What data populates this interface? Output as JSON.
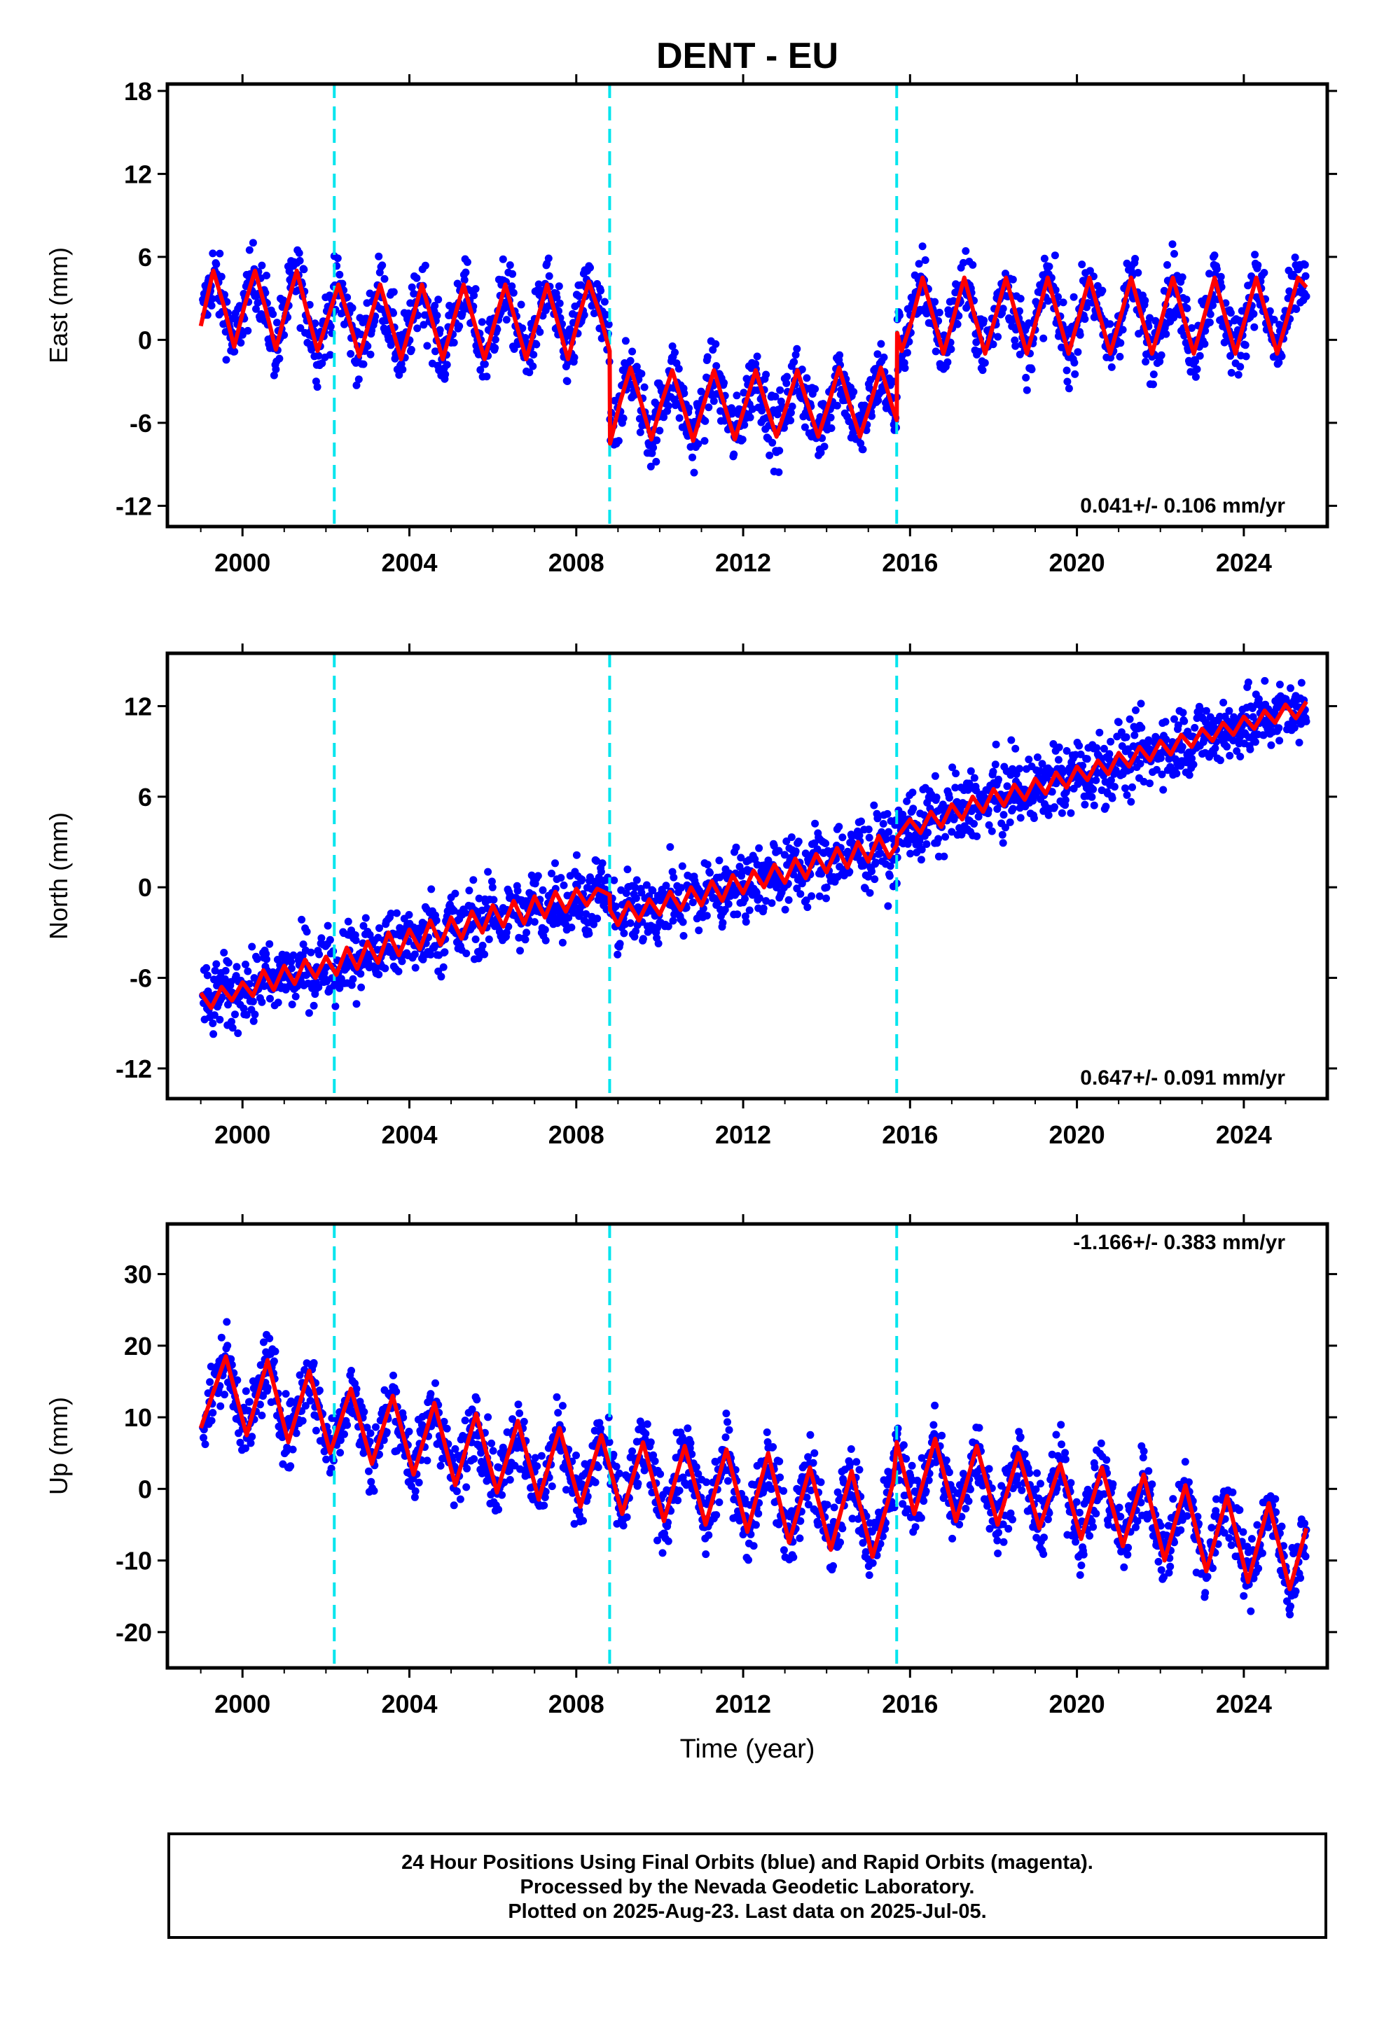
{
  "chart_data": {
    "title": "DENT - EU",
    "xlabel": "Time (year)",
    "xlim": [
      1998.2,
      2026.0
    ],
    "x_ticks": [
      2000,
      2004,
      2008,
      2012,
      2016,
      2020,
      2024
    ],
    "x_tick_labels": [
      "2000",
      "2004",
      "2008",
      "2012",
      "2016",
      "2020",
      "2024"
    ],
    "breaks": [
      2002.2,
      2008.8,
      2015.68
    ],
    "colors": {
      "observed": "#0000ff",
      "model": "#ff0000",
      "breaks": "#00e5ee",
      "frame": "#000000"
    },
    "panels": [
      {
        "id": "east",
        "type": "scatter",
        "ylabel": "East (mm)",
        "ylim": [
          -13.5,
          18.5
        ],
        "y_ticks": [
          18,
          12,
          6,
          0,
          -6,
          -12
        ],
        "y_tick_labels": [
          "18",
          "12",
          "6",
          "0",
          "-6",
          "-12"
        ],
        "velocity": "0.041+/- 0.106 mm/yr",
        "velocity_position": "bottom-right",
        "series": [
          {
            "name": "",
            "type": "line",
            "x": [
              1999.0,
              1999.5,
              2000.0,
              2000.5,
              2001.0,
              2001.5,
              2002.0,
              2002.5,
              2003.0,
              2003.5,
              2004.0,
              2004.5,
              2005.0,
              2005.5,
              2006.0,
              2006.5,
              2007.0,
              2007.5,
              2008.0,
              2008.5,
              2008.8,
              2009.0,
              2009.5,
              2010.0,
              2010.5,
              2011.0,
              2011.5,
              2012.0,
              2012.5,
              2013.0,
              2013.5,
              2014.0,
              2014.5,
              2015.0,
              2015.5,
              2015.68,
              2016.0,
              2016.5,
              2017.0,
              2017.5,
              2018.0,
              2018.5,
              2019.0,
              2019.5,
              2020.0,
              2020.5,
              2021.0,
              2021.5,
              2022.0,
              2022.5,
              2023.0,
              2023.5,
              2024.0,
              2024.5,
              2025.0,
              2025.5
            ],
            "y": [
              2.4,
              4.0,
              2.0,
              3.8,
              2.0,
              3.6,
              1.8,
              3.0,
              1.2,
              3.0,
              1.3,
              3.0,
              1.2,
              3.2,
              1.3,
              3.0,
              1.3,
              3.0,
              1.4,
              3.0,
              1.8,
              -4.5,
              -3.0,
              -5.0,
              -3.0,
              -5.0,
              -3.0,
              -5.0,
              -3.2,
              -5.0,
              -3.3,
              -5.0,
              -3.3,
              -5.0,
              -3.5,
              -4.0,
              2.0,
              3.5,
              1.8,
              3.5,
              1.8,
              3.6,
              1.8,
              3.6,
              1.8,
              3.6,
              1.8,
              3.6,
              1.8,
              3.6,
              1.8,
              3.6,
              1.8,
              3.6,
              1.8,
              3.6
            ]
          },
          {
            "name": "",
            "type": "line",
            "x": [
              1999.0,
              1999.3,
              1999.55,
              1999.8,
              2000.05,
              2000.3,
              2000.55,
              2000.8,
              2001.05,
              2001.3,
              2001.55,
              2001.8,
              2002.05,
              2002.3,
              2002.55,
              2002.8,
              2003.05,
              2003.3,
              2003.55,
              2003.8,
              2004.05,
              2004.3,
              2004.55,
              2004.8,
              2005.05,
              2005.3,
              2005.55,
              2005.8,
              2006.05,
              2006.3,
              2006.55,
              2006.8,
              2007.05,
              2007.3,
              2007.55,
              2007.8,
              2008.05,
              2008.3,
              2008.55,
              2008.8,
              2008.81,
              2009.05,
              2009.3,
              2009.55,
              2009.8,
              2010.05,
              2010.3,
              2010.55,
              2010.8,
              2011.05,
              2011.3,
              2011.55,
              2011.8,
              2012.05,
              2012.3,
              2012.55,
              2012.8,
              2013.05,
              2013.3,
              2013.55,
              2013.8,
              2014.05,
              2014.3,
              2014.55,
              2014.8,
              2015.05,
              2015.3,
              2015.55,
              2015.68,
              2015.69,
              2015.8,
              2016.05,
              2016.3,
              2016.55,
              2016.8,
              2017.05,
              2017.3,
              2017.55,
              2017.8,
              2018.05,
              2018.3,
              2018.55,
              2018.8,
              2019.05,
              2019.3,
              2019.55,
              2019.8,
              2020.05,
              2020.3,
              2020.55,
              2020.8,
              2021.05,
              2021.3,
              2021.55,
              2021.8,
              2022.05,
              2022.3,
              2022.55,
              2022.8,
              2023.05,
              2023.3,
              2023.55,
              2023.8,
              2024.05,
              2024.3,
              2024.55,
              2024.8,
              2025.05,
              2025.3,
              2025.5
            ],
            "y": [
              1.0,
              5.0,
              2.5,
              -0.5,
              2.5,
              5.0,
              2.3,
              -0.7,
              2.3,
              5.0,
              2.0,
              -0.8,
              1.6,
              4.0,
              1.5,
              -1.2,
              1.4,
              4.0,
              1.3,
              -1.4,
              1.3,
              4.0,
              1.3,
              -1.4,
              1.3,
              4.0,
              1.3,
              -1.4,
              1.3,
              4.0,
              1.3,
              -1.4,
              1.3,
              4.0,
              1.3,
              -1.4,
              1.5,
              4.2,
              2.0,
              -0.8,
              -7.5,
              -4.5,
              -2.0,
              -4.5,
              -7.2,
              -4.5,
              -2.2,
              -4.7,
              -7.3,
              -4.7,
              -2.2,
              -4.7,
              -7.2,
              -4.7,
              -2.2,
              -4.7,
              -7.0,
              -4.7,
              -2.2,
              -4.7,
              -7.0,
              -4.6,
              -2.0,
              -4.6,
              -7.0,
              -4.6,
              -2.0,
              -4.6,
              -5.8,
              0.5,
              -0.8,
              1.5,
              4.5,
              1.7,
              -1.0,
              1.7,
              4.5,
              1.7,
              -1.0,
              1.7,
              4.5,
              1.7,
              -1.0,
              1.7,
              4.5,
              1.7,
              -1.0,
              1.7,
              4.5,
              1.7,
              -1.0,
              1.7,
              4.5,
              1.7,
              -1.0,
              1.7,
              4.5,
              1.7,
              -1.0,
              1.7,
              4.5,
              1.7,
              -1.0,
              1.7,
              4.5,
              1.7,
              -1.0,
              1.7,
              4.5,
              3.8
            ]
          }
        ]
      },
      {
        "id": "north",
        "type": "scatter",
        "ylabel": "North (mm)",
        "ylim": [
          -14.0,
          15.5
        ],
        "y_ticks": [
          12,
          6,
          0,
          -6,
          -12
        ],
        "y_tick_labels": [
          "12",
          "6",
          "0",
          "-6",
          "-12"
        ],
        "velocity": "0.647+/- 0.091 mm/yr",
        "velocity_position": "bottom-right",
        "series": [
          {
            "name": "",
            "type": "line",
            "x": [
              1999.0,
              2000.0,
              2001.0,
              2002.0,
              2002.2,
              2003.0,
              2004.0,
              2005.0,
              2006.0,
              2007.0,
              2008.0,
              2008.8,
              2009.0,
              2010.0,
              2011.0,
              2012.0,
              2013.0,
              2014.0,
              2015.0,
              2015.68,
              2016.0,
              2017.0,
              2018.0,
              2019.0,
              2020.0,
              2021.0,
              2022.0,
              2023.0,
              2024.0,
              2025.0,
              2025.5
            ],
            "y": [
              -7.5,
              -6.5,
              -5.8,
              -5.2,
              -5.0,
              -4.4,
              -3.7,
              -3.2,
              -2.6,
              -2.0,
              -1.4,
              -0.9,
              -2.3,
              -1.8,
              -1.2,
              -0.5,
              0.1,
              0.7,
              1.3,
              2.0,
              3.8,
              4.6,
              5.3,
              6.0,
              6.8,
              7.5,
              8.2,
              8.9,
              9.6,
              10.3,
              10.7
            ]
          },
          {
            "name": "",
            "type": "line",
            "x": [
              1999.0,
              1999.25,
              1999.5,
              1999.75,
              2000.0,
              2000.25,
              2000.5,
              2000.75,
              2001.0,
              2001.25,
              2001.5,
              2001.75,
              2002.0,
              2002.25,
              2002.5,
              2002.75,
              2003.0,
              2003.25,
              2003.5,
              2003.75,
              2004.0,
              2004.25,
              2004.5,
              2004.75,
              2005.0,
              2005.25,
              2005.5,
              2005.75,
              2006.0,
              2006.25,
              2006.5,
              2006.75,
              2007.0,
              2007.25,
              2007.5,
              2007.75,
              2008.0,
              2008.25,
              2008.5,
              2008.8,
              2008.81,
              2009.0,
              2009.25,
              2009.5,
              2009.75,
              2010.0,
              2010.25,
              2010.5,
              2010.75,
              2011.0,
              2011.25,
              2011.5,
              2011.75,
              2012.0,
              2012.25,
              2012.5,
              2012.75,
              2013.0,
              2013.25,
              2013.5,
              2013.75,
              2014.0,
              2014.25,
              2014.5,
              2014.75,
              2015.0,
              2015.25,
              2015.5,
              2015.68,
              2015.69,
              2016.0,
              2016.25,
              2016.5,
              2016.75,
              2017.0,
              2017.25,
              2017.5,
              2017.75,
              2018.0,
              2018.25,
              2018.5,
              2018.75,
              2019.0,
              2019.25,
              2019.5,
              2019.75,
              2020.0,
              2020.25,
              2020.5,
              2020.75,
              2021.0,
              2021.25,
              2021.5,
              2021.75,
              2022.0,
              2022.25,
              2022.5,
              2022.75,
              2023.0,
              2023.25,
              2023.5,
              2023.75,
              2024.0,
              2024.25,
              2024.5,
              2024.75,
              2025.0,
              2025.25,
              2025.5
            ],
            "y": [
              -7.0,
              -8.0,
              -6.6,
              -7.5,
              -6.3,
              -7.2,
              -5.5,
              -6.8,
              -5.2,
              -6.4,
              -4.8,
              -6.0,
              -4.6,
              -5.8,
              -4.0,
              -5.4,
              -3.6,
              -5.0,
              -3.0,
              -4.5,
              -2.8,
              -4.1,
              -2.2,
              -3.8,
              -2.0,
              -3.4,
              -1.6,
              -3.0,
              -1.2,
              -2.6,
              -0.9,
              -2.4,
              -0.6,
              -2.0,
              -0.3,
              -1.6,
              -0.1,
              -1.2,
              -0.1,
              -0.5,
              -1.5,
              -2.5,
              -1.0,
              -2.2,
              -0.8,
              -1.8,
              -0.3,
              -1.5,
              0.0,
              -1.2,
              0.4,
              -0.9,
              0.8,
              -0.4,
              1.1,
              0.0,
              1.5,
              0.3,
              1.9,
              0.6,
              2.2,
              1.0,
              2.6,
              1.3,
              3.0,
              1.7,
              3.4,
              2.0,
              2.8,
              3.3,
              4.5,
              3.6,
              5.0,
              4.0,
              5.5,
              4.5,
              6.0,
              5.0,
              6.5,
              5.4,
              6.8,
              5.8,
              7.2,
              6.2,
              7.6,
              6.6,
              8.0,
              7.1,
              8.4,
              7.5,
              8.9,
              8.0,
              9.3,
              8.4,
              9.7,
              8.8,
              10.1,
              9.3,
              10.5,
              9.7,
              10.9,
              10.1,
              11.3,
              10.5,
              11.7,
              10.9,
              12.1,
              11.2,
              12.3
            ]
          }
        ]
      },
      {
        "id": "up",
        "type": "scatter",
        "ylabel": "Up (mm)",
        "ylim": [
          -25.0,
          37.0
        ],
        "y_ticks": [
          30,
          20,
          10,
          0,
          -10,
          -20
        ],
        "y_tick_labels": [
          "30",
          "20",
          "10",
          "0",
          "-10",
          "-20"
        ],
        "velocity": "-1.166+/- 0.383 mm/yr",
        "velocity_position": "top-right",
        "series": [
          {
            "name": "",
            "type": "line",
            "x": [
              1999.0,
              2000.0,
              2001.0,
              2002.0,
              2003.0,
              2004.0,
              2005.0,
              2006.0,
              2007.0,
              2008.0,
              2009.0,
              2010.0,
              2011.0,
              2012.0,
              2013.0,
              2014.0,
              2015.0,
              2016.0,
              2017.0,
              2018.0,
              2019.0,
              2020.0,
              2021.0,
              2022.0,
              2023.0,
              2024.0,
              2025.0,
              2025.5
            ],
            "y": [
              13.0,
              12.0,
              10.5,
              9.0,
              7.5,
              6.5,
              5.0,
              4.0,
              3.0,
              2.0,
              1.0,
              0.5,
              0.0,
              -1.0,
              -1.5,
              -2.0,
              -2.5,
              -1.5,
              -1.0,
              -1.5,
              -2.0,
              -2.5,
              -3.0,
              -4.0,
              -5.0,
              -6.0,
              -7.0,
              -7.5
            ]
          },
          {
            "name": "",
            "type": "line",
            "x": [
              1999.0,
              1999.6,
              2000.1,
              2000.6,
              2001.1,
              2001.6,
              2002.1,
              2002.6,
              2003.1,
              2003.6,
              2004.1,
              2004.6,
              2005.1,
              2005.6,
              2006.1,
              2006.6,
              2007.1,
              2007.6,
              2008.1,
              2008.6,
              2009.1,
              2009.6,
              2010.1,
              2010.6,
              2011.1,
              2011.6,
              2012.1,
              2012.6,
              2013.1,
              2013.6,
              2014.1,
              2014.6,
              2015.1,
              2015.6,
              2015.68,
              2016.1,
              2016.6,
              2017.1,
              2017.6,
              2018.1,
              2018.6,
              2019.1,
              2019.6,
              2020.1,
              2020.6,
              2021.1,
              2021.6,
              2022.1,
              2022.6,
              2023.1,
              2023.6,
              2024.1,
              2024.6,
              2025.1,
              2025.5
            ],
            "y": [
              8.5,
              18.5,
              7.5,
              18.0,
              6.5,
              16.5,
              5.0,
              14.0,
              3.5,
              13.0,
              2.0,
              12.0,
              0.5,
              10.5,
              -0.5,
              9.5,
              -1.5,
              8.5,
              -2.5,
              7.5,
              -3.5,
              6.5,
              -4.5,
              6.0,
              -5.0,
              5.5,
              -6.0,
              5.0,
              -7.5,
              3.0,
              -8.5,
              2.5,
              -9.5,
              1.0,
              6.5,
              -3.5,
              7.0,
              -4.5,
              6.0,
              -5.0,
              5.0,
              -5.5,
              3.5,
              -7.0,
              3.0,
              -8.0,
              2.0,
              -10.0,
              0.5,
              -11.5,
              -1.0,
              -13.0,
              -2.0,
              -14.0,
              -5.5
            ]
          }
        ]
      }
    ]
  },
  "footer": {
    "line1": "24 Hour Positions Using Final Orbits (blue) and Rapid Orbits (magenta).",
    "line2": "Processed by the Nevada Geodetic Laboratory.",
    "line3": "Plotted on 2025-Aug-23. Last data on 2025-Jul-05."
  }
}
